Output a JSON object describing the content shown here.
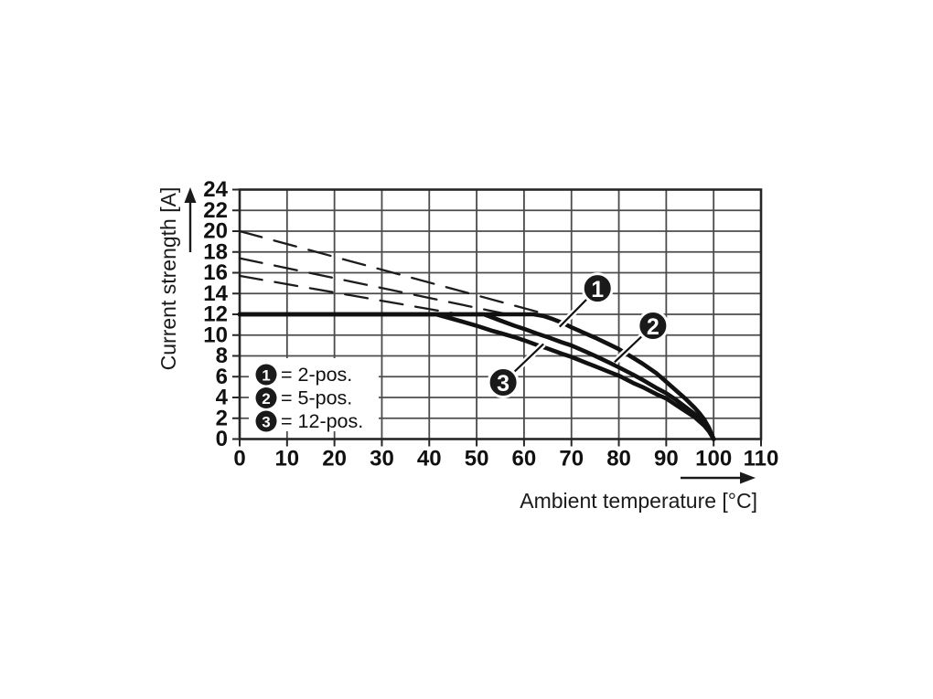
{
  "chart_data": {
    "type": "line",
    "title": "",
    "xlabel": "Ambient temperature [°C]",
    "ylabel": "Current strength [A]",
    "xlim": [
      0,
      110
    ],
    "ylim": [
      0,
      24
    ],
    "xticks": [
      0,
      10,
      20,
      30,
      40,
      50,
      60,
      70,
      80,
      90,
      100,
      110
    ],
    "yticks": [
      0,
      2,
      4,
      6,
      8,
      10,
      12,
      14,
      16,
      18,
      20,
      22,
      24
    ],
    "grid": true,
    "legend_position": "bottom-left-inside",
    "colors": {
      "curve": "#111111",
      "dashed": "#1c1c1c",
      "grid": "#4b4b4b",
      "frame": "#262626",
      "text": "#111111",
      "marker_bg": "#1a1a1a",
      "marker_fg": "#ffffff",
      "legend_bg": "#ffffff"
    },
    "series": [
      {
        "name": "2-pos.",
        "callout": "1",
        "style": "solid",
        "points": [
          [
            0,
            12
          ],
          [
            30,
            12
          ],
          [
            50,
            12
          ],
          [
            58,
            12
          ],
          [
            62,
            12
          ],
          [
            64,
            11.85
          ],
          [
            66,
            11.55
          ],
          [
            68,
            11.2
          ],
          [
            70,
            10.75
          ],
          [
            72,
            10.35
          ],
          [
            75,
            9.75
          ],
          [
            78,
            9.1
          ],
          [
            80,
            8.65
          ],
          [
            82,
            8.1
          ],
          [
            85,
            7.25
          ],
          [
            88,
            6.3
          ],
          [
            90,
            5.5
          ],
          [
            92,
            4.7
          ],
          [
            94,
            3.9
          ],
          [
            96,
            3.0
          ],
          [
            97,
            2.5
          ],
          [
            98,
            1.9
          ],
          [
            99,
            1.1
          ],
          [
            100,
            0
          ]
        ]
      },
      {
        "name": "5-pos.",
        "callout": "2",
        "style": "solid",
        "points": [
          [
            0,
            12
          ],
          [
            30,
            12
          ],
          [
            48,
            12
          ],
          [
            51.5,
            12
          ],
          [
            53,
            11.75
          ],
          [
            55,
            11.4
          ],
          [
            58,
            10.9
          ],
          [
            60,
            10.6
          ],
          [
            63,
            10.1
          ],
          [
            65,
            9.8
          ],
          [
            68,
            9.3
          ],
          [
            70,
            9.0
          ],
          [
            73,
            8.4
          ],
          [
            75,
            8.0
          ],
          [
            78,
            7.35
          ],
          [
            80,
            6.9
          ],
          [
            83,
            6.2
          ],
          [
            85,
            5.7
          ],
          [
            88,
            4.9
          ],
          [
            90,
            4.4
          ],
          [
            92,
            3.8
          ],
          [
            94,
            3.1
          ],
          [
            96,
            2.4
          ],
          [
            97,
            2.0
          ],
          [
            98,
            1.5
          ],
          [
            99,
            0.9
          ],
          [
            100,
            0
          ]
        ]
      },
      {
        "name": "12-pos.",
        "callout": "3",
        "style": "solid",
        "points": [
          [
            0,
            12
          ],
          [
            30,
            12
          ],
          [
            40,
            12
          ],
          [
            41.5,
            12
          ],
          [
            43,
            11.8
          ],
          [
            45,
            11.55
          ],
          [
            47,
            11.3
          ],
          [
            50,
            10.9
          ],
          [
            53,
            10.45
          ],
          [
            55,
            10.2
          ],
          [
            58,
            9.8
          ],
          [
            60,
            9.5
          ],
          [
            63,
            9.0
          ],
          [
            65,
            8.7
          ],
          [
            68,
            8.2
          ],
          [
            70,
            7.9
          ],
          [
            73,
            7.35
          ],
          [
            75,
            7.0
          ],
          [
            78,
            6.45
          ],
          [
            80,
            6.1
          ],
          [
            83,
            5.4
          ],
          [
            85,
            5.0
          ],
          [
            88,
            4.3
          ],
          [
            90,
            3.9
          ],
          [
            92,
            3.3
          ],
          [
            94,
            2.7
          ],
          [
            96,
            2.1
          ],
          [
            97,
            1.7
          ],
          [
            98,
            1.3
          ],
          [
            99,
            0.75
          ],
          [
            100,
            0
          ]
        ]
      },
      {
        "name": "derating-line-20A",
        "style": "dashed",
        "points": [
          [
            0,
            20
          ],
          [
            64,
            12.1
          ]
        ]
      },
      {
        "name": "derating-line-17.4A",
        "style": "dashed",
        "points": [
          [
            0,
            17.4
          ],
          [
            56,
            12.05
          ]
        ]
      },
      {
        "name": "derating-line-15.7A",
        "style": "dashed",
        "points": [
          [
            0,
            15.7
          ],
          [
            47,
            11.95
          ]
        ]
      }
    ],
    "legend": [
      {
        "symbol": "1",
        "label": "= 2-pos."
      },
      {
        "symbol": "2",
        "label": "= 5-pos."
      },
      {
        "symbol": "3",
        "label": "= 12-pos."
      }
    ],
    "annotations": [
      {
        "symbol": "1",
        "cx": 75.5,
        "cy": 14.5,
        "tx": 67.5,
        "ty": 10.8
      },
      {
        "symbol": "2",
        "cx": 87.2,
        "cy": 10.9,
        "tx": 79.1,
        "ty": 7.4
      },
      {
        "symbol": "3",
        "cx": 55.6,
        "cy": 5.45,
        "tx": 64.1,
        "ty": 9.15
      }
    ]
  }
}
